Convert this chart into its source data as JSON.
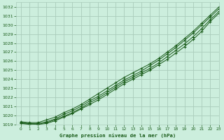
{
  "title": "Graphe pression niveau de la mer (hPa)",
  "bg_color": "#cceedd",
  "grid_color": "#aaccbb",
  "line_color": "#1a5c1a",
  "xlim": [
    -0.5,
    23
  ],
  "ylim": [
    1019,
    1032.5
  ],
  "xticks": [
    0,
    1,
    2,
    3,
    4,
    5,
    6,
    7,
    8,
    9,
    10,
    11,
    12,
    13,
    14,
    15,
    16,
    17,
    18,
    19,
    20,
    21,
    22,
    23
  ],
  "yticks": [
    1019,
    1020,
    1021,
    1022,
    1023,
    1024,
    1025,
    1026,
    1027,
    1028,
    1029,
    1030,
    1031,
    1032
  ],
  "series": [
    [
      1019.1,
      1019.1,
      1019.0,
      1019.1,
      1019.4,
      1019.8,
      1020.2,
      1020.7,
      1021.2,
      1021.7,
      1022.3,
      1022.9,
      1023.5,
      1024.0,
      1024.5,
      1025.0,
      1025.6,
      1026.2,
      1026.9,
      1027.6,
      1028.4,
      1029.3,
      1030.4,
      1031.3
    ],
    [
      1019.1,
      1019.0,
      1019.0,
      1019.2,
      1019.5,
      1019.9,
      1020.3,
      1020.8,
      1021.4,
      1021.9,
      1022.5,
      1023.1,
      1023.7,
      1024.2,
      1024.7,
      1025.2,
      1025.8,
      1026.5,
      1027.2,
      1027.9,
      1028.7,
      1029.6,
      1030.6,
      1031.5
    ],
    [
      1019.2,
      1019.1,
      1019.1,
      1019.3,
      1019.6,
      1020.1,
      1020.5,
      1021.0,
      1021.6,
      1022.1,
      1022.7,
      1023.3,
      1023.9,
      1024.4,
      1024.9,
      1025.5,
      1026.1,
      1026.8,
      1027.5,
      1028.3,
      1029.1,
      1030.0,
      1030.9,
      1031.8
    ],
    [
      1019.3,
      1019.2,
      1019.2,
      1019.5,
      1019.8,
      1020.3,
      1020.7,
      1021.2,
      1021.8,
      1022.4,
      1023.0,
      1023.6,
      1024.2,
      1024.7,
      1025.2,
      1025.7,
      1026.3,
      1027.0,
      1027.7,
      1028.5,
      1029.3,
      1030.2,
      1031.1,
      1032.0
    ]
  ]
}
